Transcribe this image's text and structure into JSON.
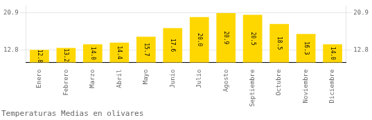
{
  "chart_data": {
    "type": "bar",
    "title": "Temperaturas Medias en olivares",
    "categories": [
      "Enero",
      "Febrero",
      "Marzo",
      "Abril",
      "Mayo",
      "Junio",
      "Julio",
      "Agosto",
      "Septiembre",
      "Octubre",
      "Noviembre",
      "Diciembre"
    ],
    "values": [
      12.8,
      13.2,
      14.0,
      14.4,
      15.7,
      17.6,
      20.0,
      20.9,
      20.5,
      18.5,
      16.3,
      14.0
    ],
    "value_labels": [
      "12.8",
      "13.2",
      "14.0",
      "14.4",
      "15.7",
      "17.6",
      "20.0",
      "20.9",
      "20.5",
      "18.5",
      "16.3",
      "14.0"
    ],
    "data_labels": true,
    "color": "#FFD700",
    "ylim": [
      10.0,
      22.5
    ],
    "yticks": [
      12.8,
      20.9
    ],
    "y2lim": [
      10.0,
      22.5
    ],
    "y2ticks": [
      12.8,
      20.9
    ],
    "grid": true
  }
}
